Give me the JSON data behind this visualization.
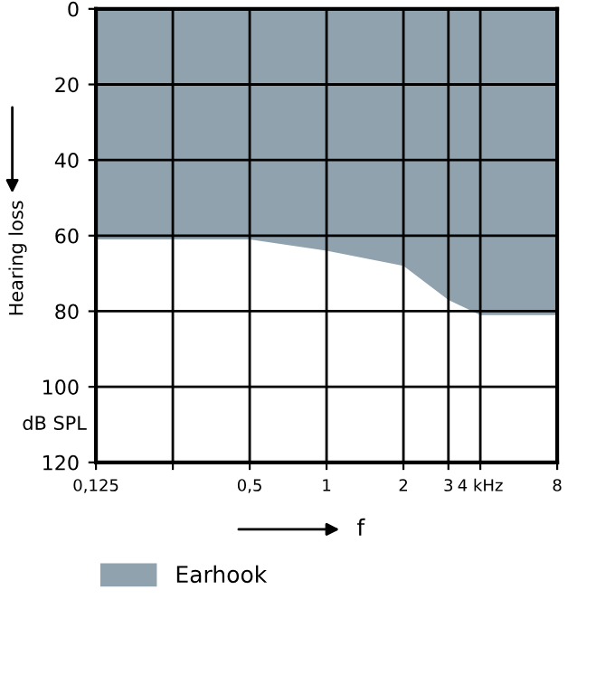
{
  "chart_data": {
    "type": "area",
    "xlabel": "f",
    "ylabel": "Hearing loss",
    "annotations": [
      "dB SPL"
    ],
    "x": [
      0.125,
      0.5,
      1,
      2,
      3,
      4,
      8
    ],
    "series": [
      {
        "name": "Earhook",
        "color": "#8fa2ae",
        "values": [
          61,
          61,
          64,
          68,
          77,
          81,
          81
        ]
      }
    ],
    "log": "x",
    "xlim": [
      0.125,
      8
    ],
    "ylim": [
      120,
      0
    ],
    "xticks": [
      {
        "value": 0.125,
        "label": "0,125"
      },
      {
        "value": 0.25,
        "label": null
      },
      {
        "value": 0.5,
        "label": "0,5"
      },
      1,
      2,
      3,
      {
        "value": 4,
        "label": "4 kHz"
      },
      8
    ],
    "yticks": [
      0,
      20,
      40,
      60,
      80,
      100,
      120
    ],
    "grid": true,
    "legend": "bottom"
  }
}
